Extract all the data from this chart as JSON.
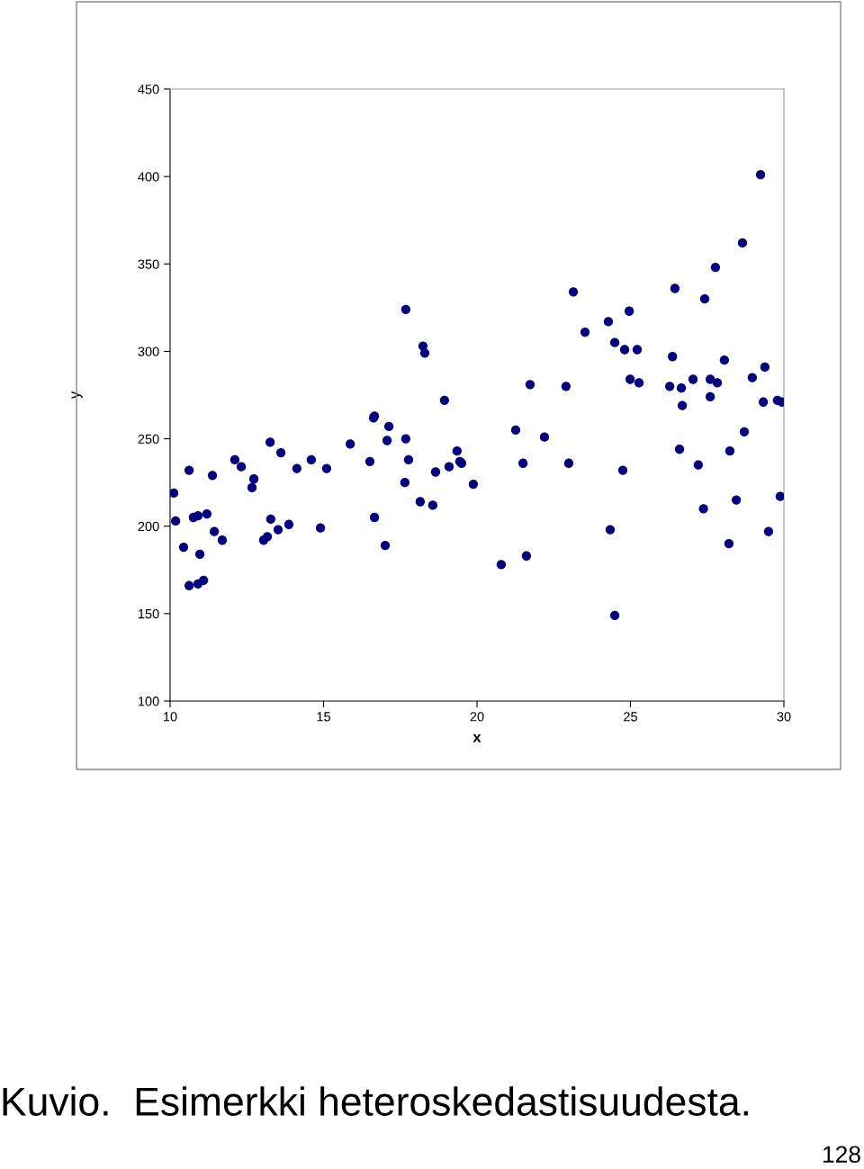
{
  "chart_data": {
    "type": "scatter",
    "xlabel": "x",
    "ylabel": "y",
    "xlim": [
      10,
      30
    ],
    "xticks": [
      10,
      15,
      20,
      25,
      30
    ],
    "ylim": [
      100,
      450
    ],
    "yticks": [
      100,
      150,
      200,
      250,
      300,
      350,
      400,
      450
    ],
    "grid": false,
    "marker": "circle",
    "annotations": [
      "Kuvio.  Esimerkki heteroskedastisuudesta.",
      "128"
    ],
    "series": [
      {
        "color": "#00007f",
        "x": [
          10.12,
          10.18,
          10.44,
          10.62,
          10.62,
          10.76,
          10.91,
          10.91,
          10.97,
          11.09,
          11.2,
          11.38,
          11.44,
          11.7,
          12.11,
          12.32,
          12.67,
          12.73,
          13.05,
          13.17,
          13.26,
          13.28,
          13.52,
          13.61,
          13.87,
          14.13,
          14.6,
          14.9,
          15.1,
          15.87,
          16.51,
          16.63,
          16.66,
          16.66,
          17.01,
          17.07,
          17.13,
          17.65,
          17.68,
          17.68,
          17.77,
          18.15,
          18.24,
          18.3,
          18.56,
          18.65,
          18.94,
          19.09,
          19.35,
          19.44,
          19.5,
          19.88,
          20.79,
          21.26,
          21.5,
          21.61,
          21.73,
          22.2,
          22.9,
          22.99,
          23.14,
          23.52,
          24.28,
          24.34,
          24.49,
          24.49,
          24.75,
          24.81,
          24.96,
          24.99,
          25.22,
          25.28,
          26.28,
          26.37,
          26.45,
          26.6,
          26.66,
          26.69,
          27.04,
          27.21,
          27.38,
          27.42,
          27.6,
          27.6,
          27.77,
          27.83,
          28.06,
          28.21,
          28.24,
          28.45,
          28.65,
          28.71,
          28.97,
          29.24,
          29.33,
          29.38,
          29.5,
          29.79,
          29.88,
          29.94
        ],
        "values": [
          219,
          203,
          188,
          232,
          166,
          205,
          206,
          167,
          184,
          169,
          207,
          229,
          197,
          192,
          238,
          234,
          222,
          227,
          192,
          194,
          248,
          204,
          198,
          242,
          201,
          233,
          238,
          199,
          233,
          247,
          237,
          262,
          263,
          205,
          189,
          249,
          257,
          225,
          324,
          250,
          238,
          214,
          303,
          299,
          212,
          231,
          272,
          234,
          243,
          237,
          236,
          224,
          178,
          255,
          236,
          183,
          281,
          251,
          280,
          236,
          334,
          311,
          317,
          198,
          305,
          149,
          232,
          301,
          323,
          284,
          301,
          282,
          280,
          297,
          336,
          244,
          279,
          269,
          284,
          235,
          210,
          330,
          284,
          274,
          348,
          282,
          295,
          190,
          243,
          215,
          362,
          254,
          285,
          401,
          271,
          291,
          197,
          272,
          217,
          271
        ]
      }
    ]
  }
}
